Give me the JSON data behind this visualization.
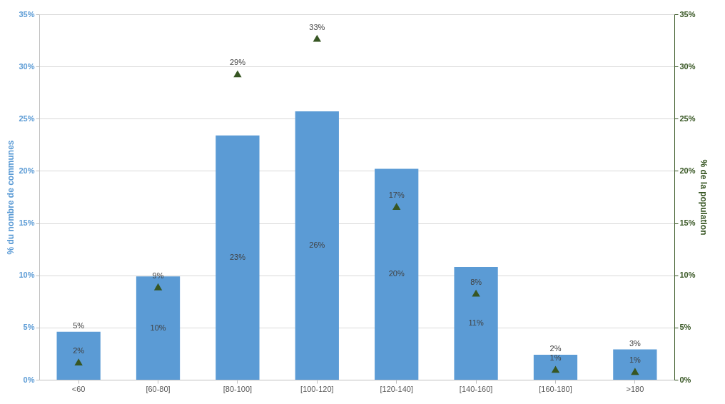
{
  "chart_data": {
    "type": "bar",
    "categories": [
      "<60",
      "[60-80]",
      "[80-100]",
      "[100-120]",
      "[120-140]",
      "[140-160]",
      "[160-180]",
      ">180"
    ],
    "ylabel": "% du nombre de communes",
    "y2label": "% de la population",
    "series": [
      {
        "color": "#5b9bd5",
        "values": [
          4.6,
          9.9,
          23.4,
          25.7,
          20.2,
          10.8,
          2.4,
          2.9
        ],
        "value_labels": [
          "5%",
          "10%",
          "23%",
          "26%",
          "20%",
          "11%",
          "2%",
          "3%"
        ]
      },
      {
        "type": "scatter",
        "axis": "y2",
        "marker": "triangle",
        "color": "#375623",
        "values": [
          1.7,
          8.9,
          29.3,
          32.7,
          16.6,
          8.3,
          1.0,
          0.8
        ],
        "value_labels": [
          "2%",
          "9%",
          "29%",
          "33%",
          "17%",
          "8%",
          "1%",
          "1%"
        ]
      }
    ],
    "ylim": [
      0,
      35
    ],
    "yticks": [
      {
        "value": 0,
        "label": "0%"
      },
      {
        "value": 5,
        "label": "5%"
      },
      {
        "value": 10,
        "label": "10%"
      },
      {
        "value": 15,
        "label": "15%"
      },
      {
        "value": 20,
        "label": "20%"
      },
      {
        "value": 25,
        "label": "25%"
      },
      {
        "value": 30,
        "label": "30%"
      },
      {
        "value": 35,
        "label": "35%"
      }
    ],
    "y2lim": [
      0,
      35
    ],
    "y2ticks": [
      {
        "value": 0,
        "label": "0%"
      },
      {
        "value": 5,
        "label": "5%"
      },
      {
        "value": 10,
        "label": "10%"
      },
      {
        "value": 15,
        "label": "15%"
      },
      {
        "value": 20,
        "label": "20%"
      },
      {
        "value": 25,
        "label": "25%"
      },
      {
        "value": 30,
        "label": "30%"
      },
      {
        "value": 35,
        "label": "35%"
      }
    ],
    "grid": "y"
  }
}
